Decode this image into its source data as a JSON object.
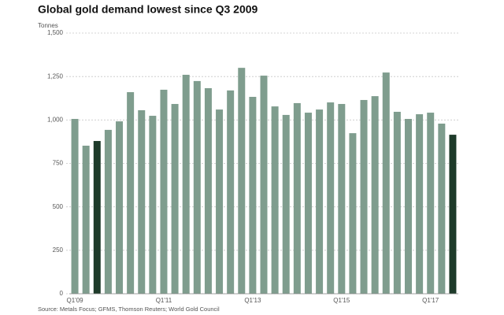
{
  "chart_data": {
    "type": "bar",
    "title": "Global gold demand lowest since Q3 2009",
    "y_label": "Tonnes",
    "source": "Source: Metals Focus; GFMS, Thomson Reuters; World Gold Council",
    "categories": [
      "Q1'09",
      null,
      null,
      null,
      null,
      null,
      null,
      null,
      "Q1'11",
      null,
      null,
      null,
      null,
      null,
      null,
      null,
      "Q1'13",
      null,
      null,
      null,
      null,
      null,
      null,
      null,
      "Q1'15",
      null,
      null,
      null,
      null,
      null,
      null,
      null,
      "Q1'17",
      null,
      null
    ],
    "values": [
      1006,
      852,
      879,
      943,
      992,
      1160,
      1056,
      1024,
      1174,
      1092,
      1260,
      1224,
      1183,
      1060,
      1170,
      1300,
      1133,
      1255,
      1078,
      1029,
      1097,
      1042,
      1060,
      1101,
      1092,
      924,
      1115,
      1137,
      1273,
      1047,
      1006,
      1033,
      1042,
      979,
      915
    ],
    "colors": [
      "#7f9d8e",
      "#7f9d8e",
      "#1e3b2a",
      "#7f9d8e",
      "#7f9d8e",
      "#7f9d8e",
      "#7f9d8e",
      "#7f9d8e",
      "#7f9d8e",
      "#7f9d8e",
      "#7f9d8e",
      "#7f9d8e",
      "#7f9d8e",
      "#7f9d8e",
      "#7f9d8e",
      "#7f9d8e",
      "#7f9d8e",
      "#7f9d8e",
      "#7f9d8e",
      "#7f9d8e",
      "#7f9d8e",
      "#7f9d8e",
      "#7f9d8e",
      "#7f9d8e",
      "#7f9d8e",
      "#7f9d8e",
      "#7f9d8e",
      "#7f9d8e",
      "#7f9d8e",
      "#7f9d8e",
      "#7f9d8e",
      "#7f9d8e",
      "#7f9d8e",
      "#7f9d8e",
      "#1e3b2a"
    ],
    "ylim": [
      0,
      1500
    ],
    "yticks": [
      0,
      250,
      500,
      750,
      {
        "value": 1000,
        "label": "1,000"
      },
      {
        "value": 1250,
        "label": "1,250"
      },
      {
        "value": 1500,
        "label": "1,500"
      }
    ],
    "grid": true
  }
}
